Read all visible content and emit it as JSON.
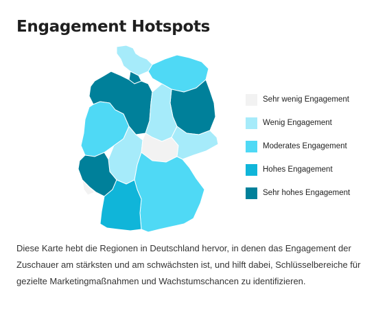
{
  "title": "Engagement Hotspots",
  "colors": {
    "sehr_wenig": "#f2f2f2",
    "wenig": "#a6ebfa",
    "moderat": "#4fd9f5",
    "hoch": "#10b5d9",
    "sehr_hoch": "#00809a"
  },
  "legend": [
    {
      "label": "Sehr wenig Engagement",
      "color": "#f2f2f2"
    },
    {
      "label": "Wenig Engagement",
      "color": "#a6ebfa"
    },
    {
      "label": "Moderates Engagement",
      "color": "#4fd9f5"
    },
    {
      "label": "Hohes Engagement",
      "color": "#10b5d9"
    },
    {
      "label": "Sehr hohes Engagement",
      "color": "#00809a"
    }
  ],
  "description": "Diese Karte hebt die Regionen in Deutschland hervor, in denen das Engagement der Zuschauer am stärksten und am schwächsten ist, und hilft dabei, Schlüsselbereiche für gezielte Marketingmaßnahmen und Wachstumschancen zu identifizieren."
}
